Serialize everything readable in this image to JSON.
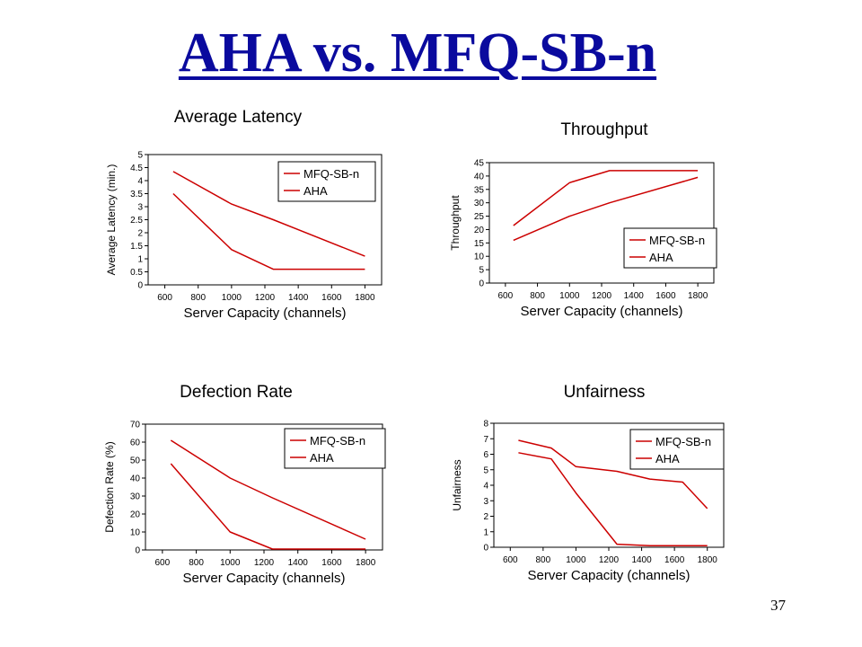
{
  "slide": {
    "title": "AHA vs. MFQ-SB-n",
    "page_number": "37"
  },
  "colors": {
    "series": "#cc0000",
    "title": "#0a0a9e",
    "axis": "#000000"
  },
  "chart_data": [
    {
      "id": "latency",
      "type": "line",
      "title": "Average Latency",
      "xlabel": "Server Capacity (channels)",
      "ylabel": "Average Latency (min.)",
      "xticks": [
        600,
        800,
        1000,
        1200,
        1400,
        1600,
        1800
      ],
      "yticks": [
        0,
        0.5,
        1,
        1.5,
        2,
        2.5,
        3,
        3.5,
        4,
        4.5,
        5
      ],
      "ytick_labels": [
        "0",
        "0.5",
        "1",
        "1.5",
        "2",
        "2.5",
        "3",
        "3.5",
        "4",
        "4.5",
        "5"
      ],
      "xlim": [
        500,
        1900
      ],
      "ylim": [
        0,
        5
      ],
      "legend_position": "top-right",
      "series": [
        {
          "name": "MFQ-SB-n",
          "x": [
            650,
            1000,
            1250,
            1800
          ],
          "y": [
            4.35,
            3.1,
            2.5,
            1.1
          ]
        },
        {
          "name": "AHA",
          "x": [
            650,
            1000,
            1250,
            1800
          ],
          "y": [
            3.5,
            1.35,
            0.6,
            0.6
          ]
        }
      ]
    },
    {
      "id": "throughput",
      "type": "line",
      "title": "Throughput",
      "xlabel": "Server Capacity (channels)",
      "ylabel": "Throughput",
      "xticks": [
        600,
        800,
        1000,
        1200,
        1400,
        1600,
        1800
      ],
      "yticks": [
        0,
        5,
        10,
        15,
        20,
        25,
        30,
        35,
        40,
        45
      ],
      "ytick_labels": [
        "0",
        "5",
        "10",
        "15",
        "20",
        "25",
        "30",
        "35",
        "40",
        "45"
      ],
      "xlim": [
        500,
        1900
      ],
      "ylim": [
        0,
        45
      ],
      "legend_position": "bottom-right",
      "series": [
        {
          "name": "MFQ-SB-n",
          "x": [
            650,
            1000,
            1250,
            1800
          ],
          "y": [
            21.5,
            37.5,
            42,
            42
          ]
        },
        {
          "name": "AHA",
          "x": [
            650,
            1000,
            1250,
            1800
          ],
          "y": [
            16,
            25,
            30,
            39.5
          ]
        }
      ]
    },
    {
      "id": "defection",
      "type": "line",
      "title": "Defection Rate",
      "xlabel": "Server Capacity (channels)",
      "ylabel": "Defection Rate (%)",
      "xticks": [
        600,
        800,
        1000,
        1200,
        1400,
        1600,
        1800
      ],
      "yticks": [
        0,
        10,
        20,
        30,
        40,
        50,
        60,
        70
      ],
      "ytick_labels": [
        "0",
        "10",
        "20",
        "30",
        "40",
        "50",
        "60",
        "70"
      ],
      "xlim": [
        500,
        1900
      ],
      "ylim": [
        0,
        70
      ],
      "legend_position": "top-right",
      "series": [
        {
          "name": "MFQ-SB-n",
          "x": [
            650,
            1000,
            1250,
            1800
          ],
          "y": [
            61,
            40,
            29,
            6
          ]
        },
        {
          "name": "AHA",
          "x": [
            650,
            1000,
            1250,
            1800
          ],
          "y": [
            48,
            10,
            0.5,
            0.5
          ]
        }
      ]
    },
    {
      "id": "unfairness",
      "type": "line",
      "title": "Unfairness",
      "xlabel": "Server Capacity (channels)",
      "ylabel": "Unfairness",
      "xticks": [
        600,
        800,
        1000,
        1200,
        1400,
        1600,
        1800
      ],
      "yticks": [
        0,
        1,
        2,
        3,
        4,
        5,
        6,
        7,
        8
      ],
      "ytick_labels": [
        "0",
        "1",
        "2",
        "3",
        "4",
        "5",
        "6",
        "7",
        "8"
      ],
      "xlim": [
        500,
        1900
      ],
      "ylim": [
        0,
        8
      ],
      "legend_position": "top-right",
      "series": [
        {
          "name": "MFQ-SB-n",
          "x": [
            650,
            850,
            1000,
            1250,
            1450,
            1650,
            1800
          ],
          "y": [
            6.9,
            6.4,
            5.2,
            4.9,
            4.4,
            4.2,
            2.5
          ]
        },
        {
          "name": "AHA",
          "x": [
            650,
            850,
            1000,
            1250,
            1450,
            1650,
            1800
          ],
          "y": [
            6.1,
            5.7,
            3.5,
            0.2,
            0.1,
            0.1,
            0.1
          ]
        }
      ]
    }
  ]
}
